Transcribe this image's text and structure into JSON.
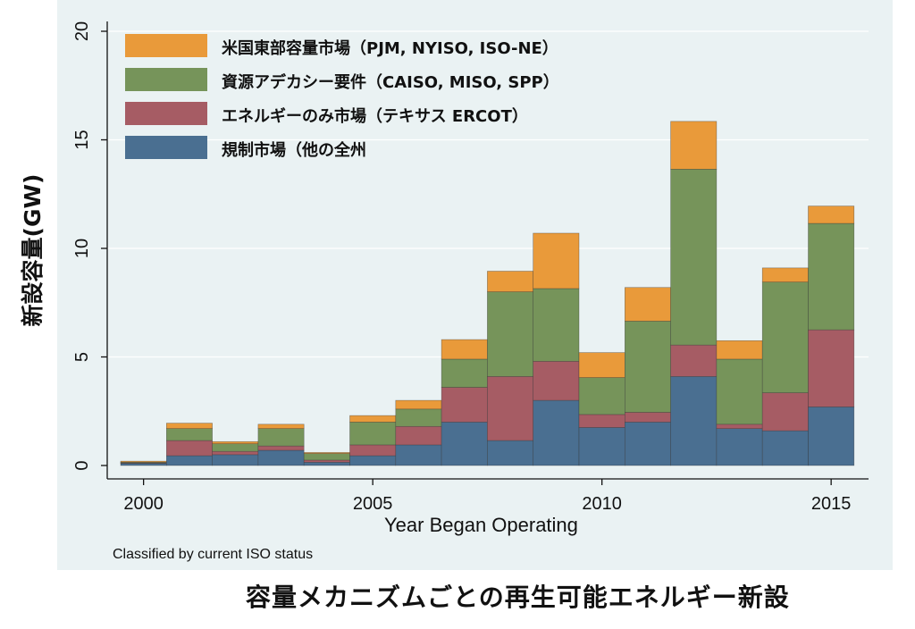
{
  "title": "容量メカニズムごとの再生可能エネルギー新設",
  "note": "Classified by current ISO status",
  "chart_data": {
    "type": "bar",
    "stacked": true,
    "xlabel": "Year Began Operating",
    "ylabel": "新設容量(GW)",
    "ylim": [
      0,
      20
    ],
    "yticks": [
      0,
      5,
      10,
      15,
      20
    ],
    "xticks": [
      2000,
      2005,
      2010,
      2015
    ],
    "grid": true,
    "legend_position": "top-left",
    "categories": [
      2000,
      2001,
      2002,
      2003,
      2004,
      2005,
      2006,
      2007,
      2008,
      2009,
      2010,
      2011,
      2012,
      2013,
      2014,
      2015
    ],
    "series": [
      {
        "name": "規制市場（他の全州",
        "color": "#4a6f91",
        "values": [
          0.1,
          0.45,
          0.5,
          0.7,
          0.15,
          0.45,
          0.95,
          2.0,
          1.15,
          3.0,
          1.75,
          2.0,
          4.1,
          1.7,
          1.6,
          2.7
        ]
      },
      {
        "name": "エネルギーのみ市場（テキサス ERCOT）",
        "color": "#a65c64",
        "values": [
          0.02,
          0.7,
          0.15,
          0.2,
          0.1,
          0.5,
          0.85,
          1.6,
          2.95,
          1.8,
          0.6,
          0.45,
          1.45,
          0.2,
          1.75,
          3.55
        ]
      },
      {
        "name": "資源アデカシー要件（CAISO, MISO, SPP）",
        "color": "#76945a",
        "values": [
          0.03,
          0.55,
          0.35,
          0.8,
          0.3,
          1.05,
          0.8,
          1.3,
          3.9,
          3.35,
          1.7,
          4.2,
          8.1,
          3.0,
          5.1,
          4.9
        ]
      },
      {
        "name": "米国東部容量市場（PJM, NYISO, ISO-NE）",
        "color": "#e99a3a",
        "values": [
          0.05,
          0.25,
          0.1,
          0.2,
          0.05,
          0.3,
          0.4,
          0.9,
          0.95,
          2.55,
          1.15,
          1.55,
          2.2,
          0.85,
          0.65,
          0.8
        ]
      }
    ]
  }
}
